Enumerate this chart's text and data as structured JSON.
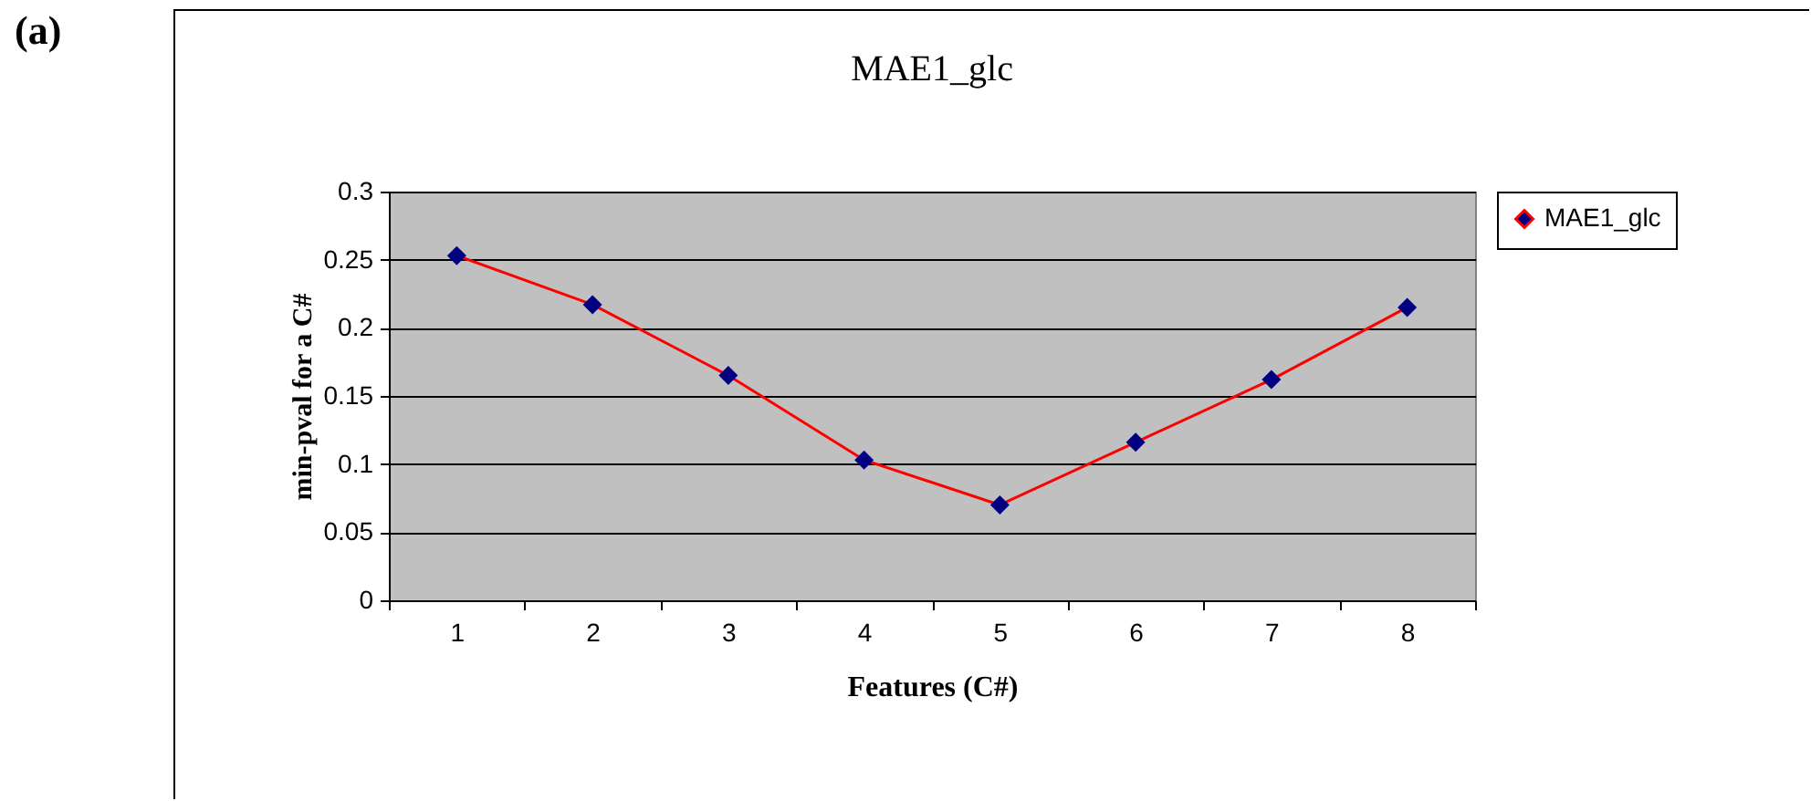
{
  "chart_data": {
    "type": "line",
    "title": "MAE1_glc",
    "xlabel": "Features (C#)",
    "ylabel": "min-pval for a C#",
    "annotations": [
      "(a)"
    ],
    "categories": [
      "1",
      "2",
      "3",
      "4",
      "5",
      "6",
      "7",
      "8"
    ],
    "series": [
      {
        "name": "MAE1_glc",
        "color": "#ff0000",
        "values": [
          0.253,
          0.217,
          0.165,
          0.103,
          0.07,
          0.116,
          0.162,
          0.215
        ]
      }
    ],
    "ylim": [
      0,
      0.3
    ],
    "yticks": [
      0,
      0.05,
      0.1,
      0.15,
      0.2,
      0.25,
      0.3
    ],
    "grid": "y",
    "legend": "right",
    "marker": "diamond",
    "line_style": "solid"
  }
}
